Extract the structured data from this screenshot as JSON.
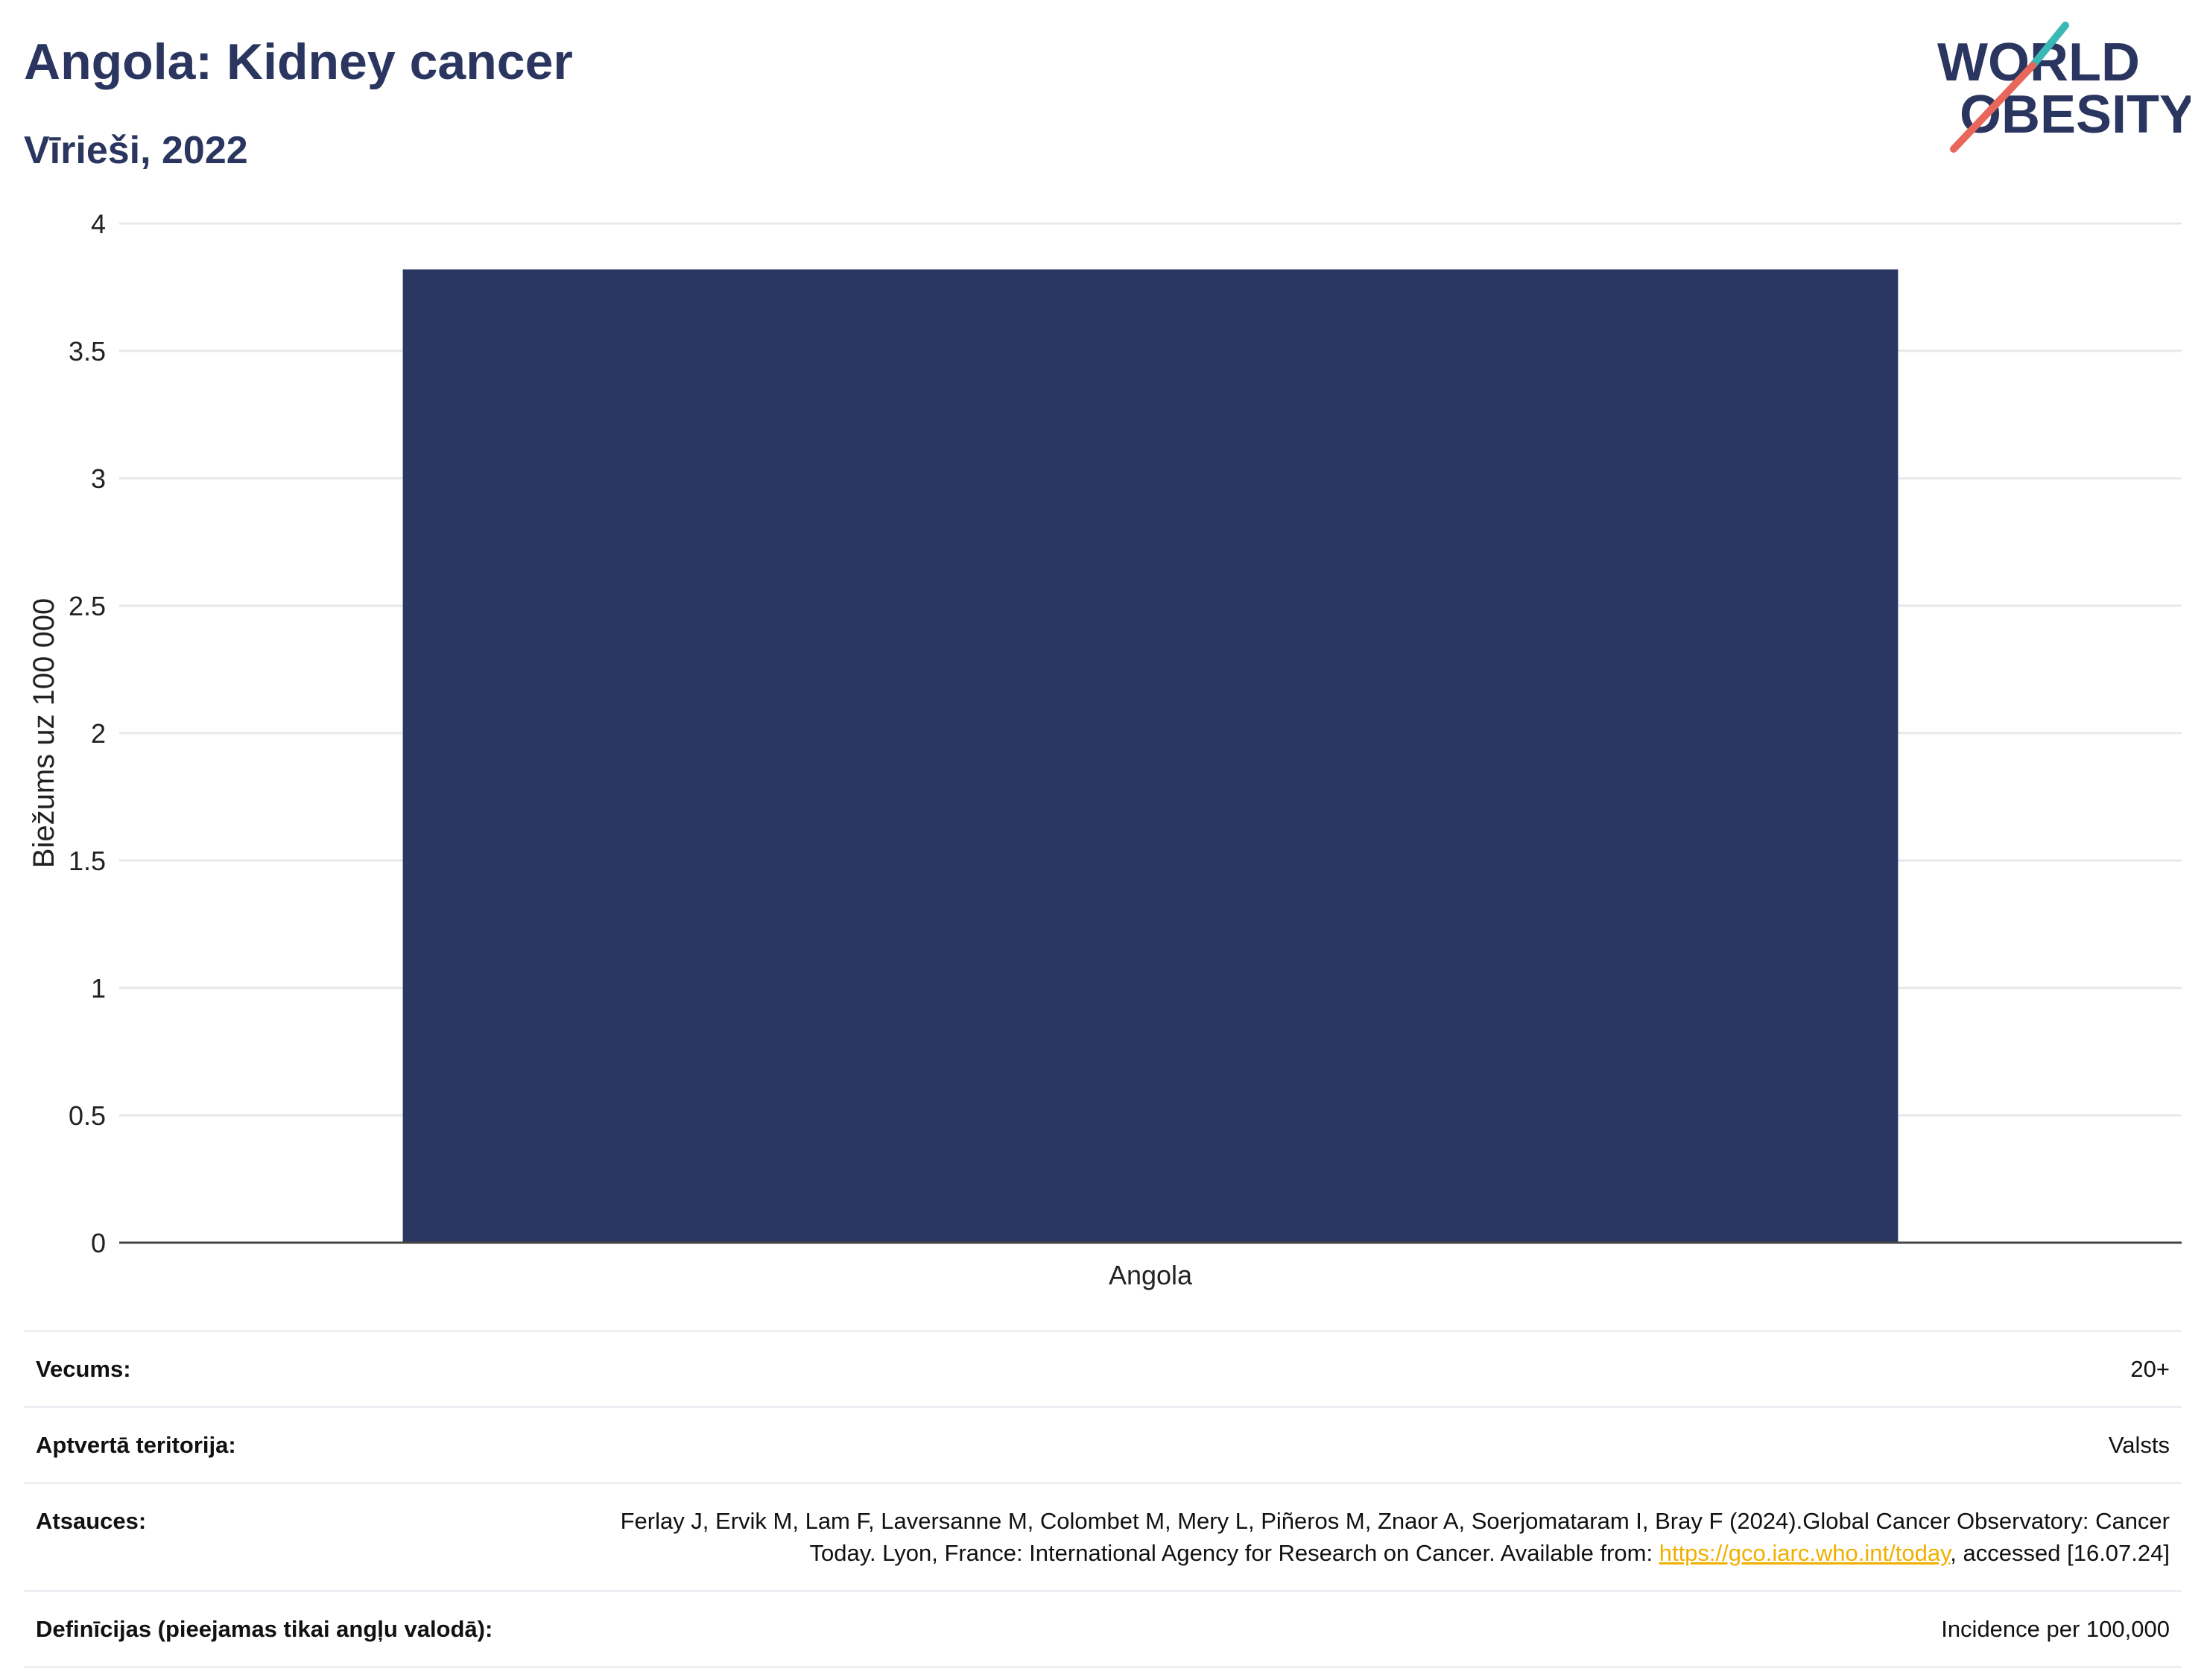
{
  "header": {
    "title": "Angola: Kidney cancer",
    "subtitle": "Vīrieši, 2022"
  },
  "logo": {
    "line1": "WORLD",
    "line2": "OBESITY",
    "colors": {
      "text": "#2a365f",
      "slash_top": "#3ab8b5",
      "slash_bottom": "#e8665a"
    }
  },
  "chart_data": {
    "type": "bar",
    "categories": [
      "Angola"
    ],
    "values": [
      3.82
    ],
    "ylabel": "Biežums uz 100 000",
    "xlabel": "",
    "ylim": [
      0,
      4
    ],
    "yticks": [
      0,
      0.5,
      1,
      1.5,
      2,
      2.5,
      3,
      3.5,
      4
    ],
    "grid": true,
    "bar_color": "#2b3763"
  },
  "info": {
    "age_label": "Vecums:",
    "age_value": "20+",
    "territory_label": "Aptvertā teritorija:",
    "territory_value": "Valsts",
    "refs_label": "Atsauces:",
    "refs_text_1": "Ferlay J, Ervik M, Lam F, Laversanne M, Colombet M, Mery L, Piñeros M, Znaor A, Soerjomataram I, Bray F (2024).Global Cancer Observatory: Cancer Today. Lyon, France: International Agency for Research on Cancer. Available from: ",
    "refs_link": "https://gco.iarc.who.int/today",
    "refs_text_2": ", accessed [16.07.24]",
    "defs_label": "Definīcijas (pieejamas tikai angļu valodā):",
    "defs_value": "Incidence per 100,000"
  }
}
